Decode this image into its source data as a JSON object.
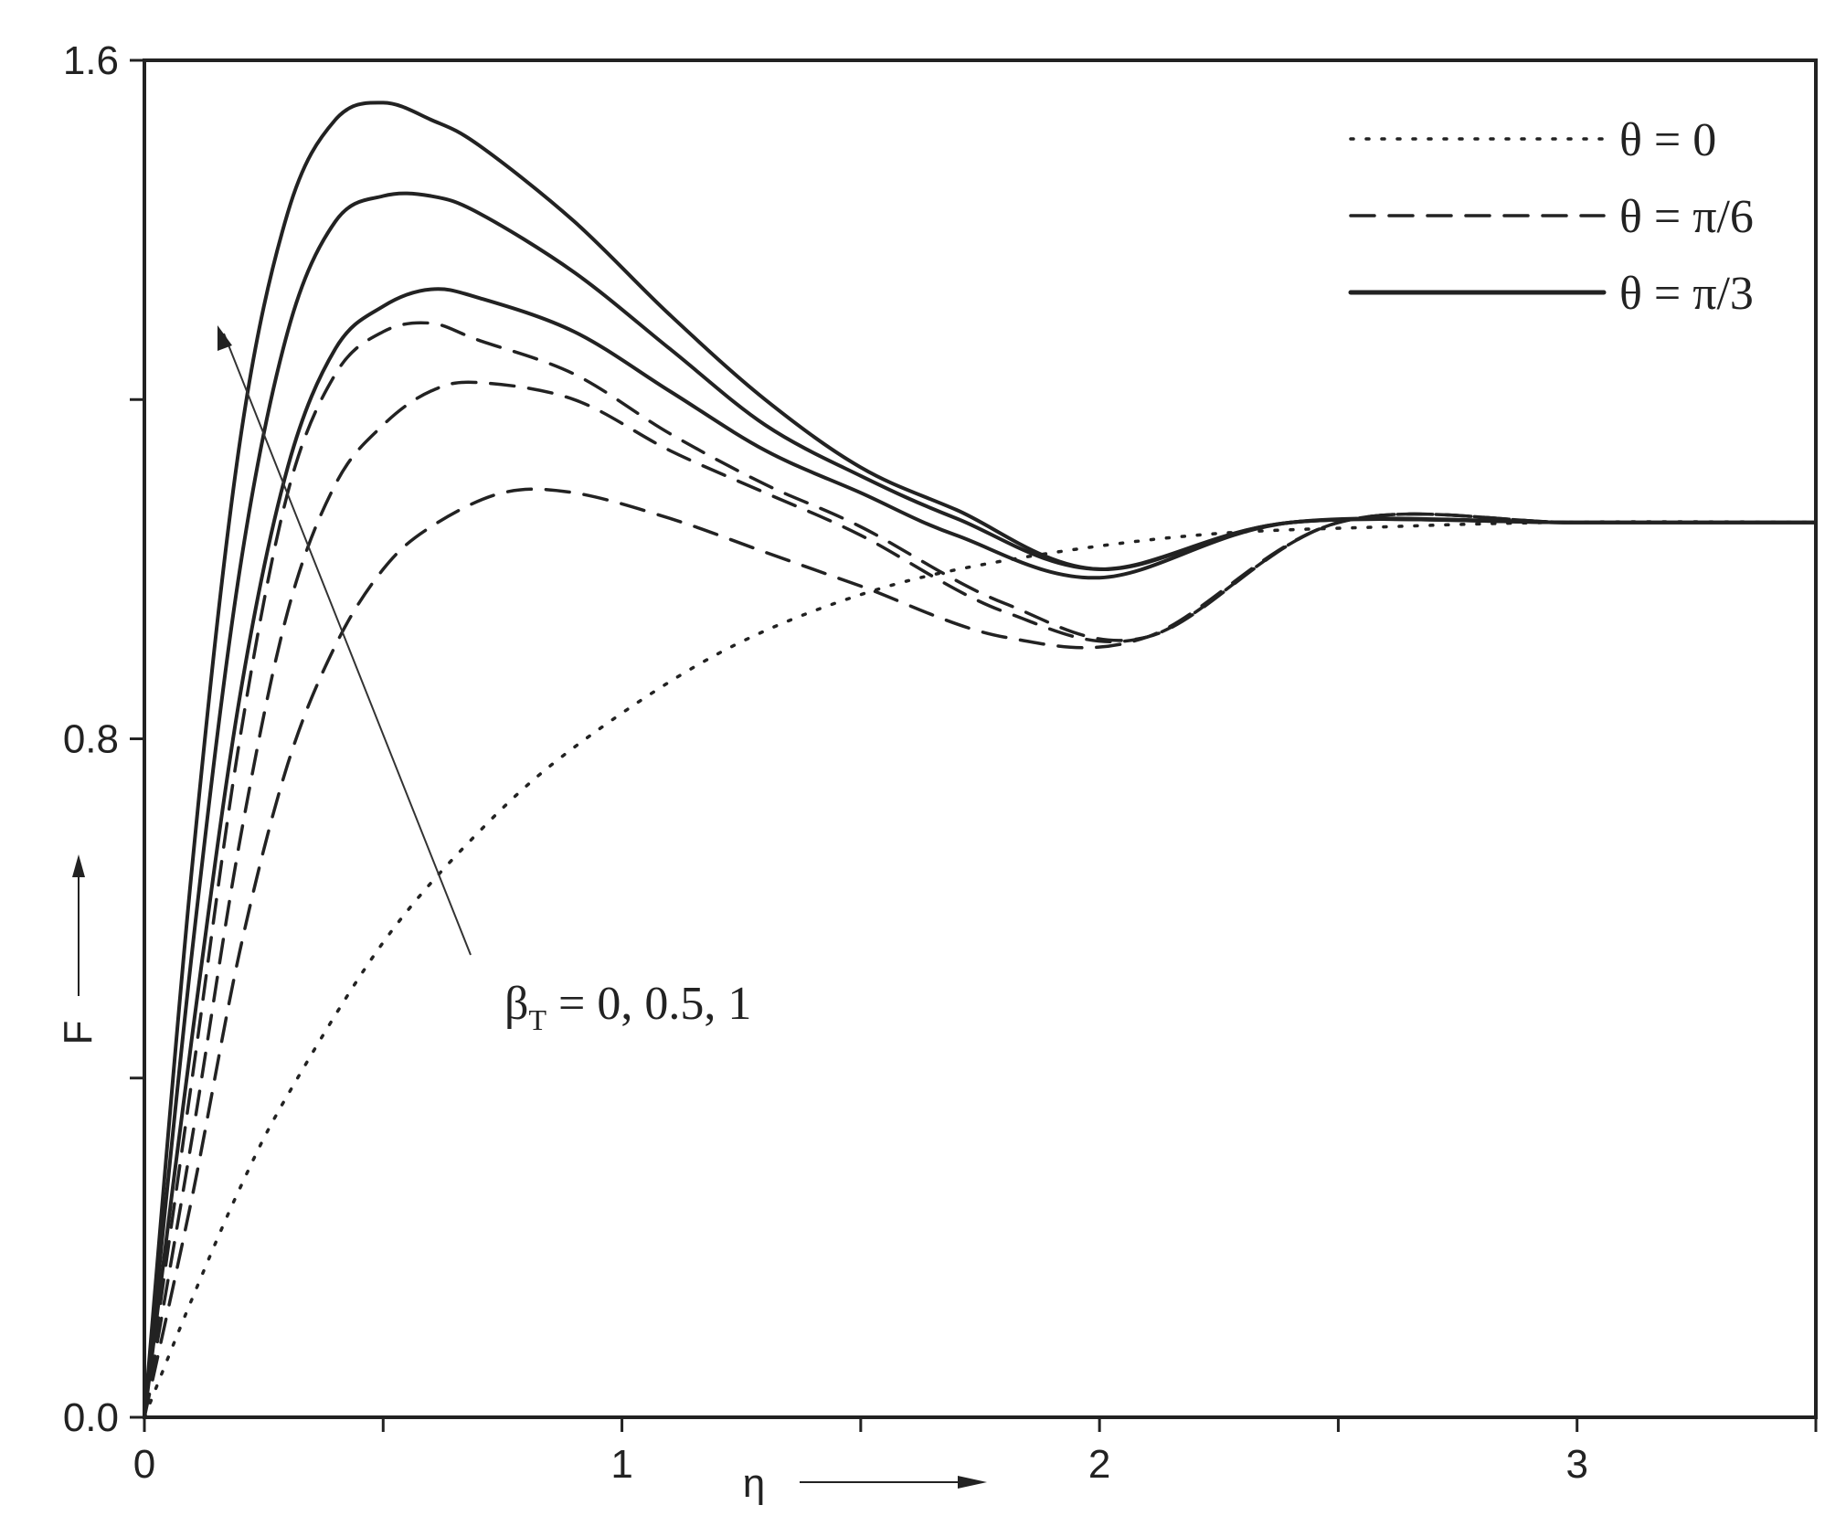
{
  "chart_data": {
    "type": "line",
    "title": "",
    "xlabel": "η",
    "ylabel": "F",
    "xlim": [
      0,
      3.5
    ],
    "ylim": [
      0,
      1.6
    ],
    "x_ticks": [
      0,
      0.5,
      1,
      1.5,
      2,
      2.5,
      3,
      3.5
    ],
    "x_tick_labels": [
      "0",
      "",
      "1",
      "",
      "2",
      "",
      "3",
      ""
    ],
    "y_ticks": [
      0,
      0.4,
      0.8,
      1.2,
      1.6
    ],
    "y_tick_labels": [
      "0.0",
      "",
      "0.8",
      "",
      "1.6"
    ],
    "grid": false,
    "legend_position": "top-right",
    "legend": [
      {
        "label": "θ = 0",
        "style": "dotted"
      },
      {
        "label": "θ = π/6",
        "style": "dashed"
      },
      {
        "label": "θ = π/3",
        "style": "solid"
      }
    ],
    "annotation": {
      "label": "β",
      "subscript": "T",
      "rest": " = 0, 0.5, 1"
    },
    "series": [
      {
        "group": "θ = 0",
        "style": "dotted",
        "beta_T": "0, 0.5, 1",
        "x": [
          0,
          0.1,
          0.2,
          0.3,
          0.5,
          0.7,
          0.9,
          1.2,
          1.5,
          1.8,
          2.2,
          2.6,
          3.0,
          3.5
        ],
        "y": [
          0,
          0.14,
          0.27,
          0.38,
          0.56,
          0.69,
          0.79,
          0.9,
          0.97,
          1.01,
          1.04,
          1.05,
          1.0555,
          1.0555
        ]
      },
      {
        "group": "θ = π/6",
        "style": "dashed",
        "beta_T": "0",
        "x": [
          0,
          0.1,
          0.2,
          0.3,
          0.4,
          0.5,
          0.6,
          0.75,
          0.9,
          1.1,
          1.3,
          1.5,
          1.8,
          2.1,
          2.5,
          3.0,
          3.5
        ],
        "y": [
          0,
          0.26,
          0.55,
          0.77,
          0.91,
          1.0,
          1.05,
          1.09,
          1.09,
          1.06,
          1.02,
          0.98,
          0.92,
          0.92,
          1.055,
          1.055,
          1.055
        ]
      },
      {
        "group": "θ = π/6",
        "style": "dashed",
        "beta_T": "0.5",
        "x": [
          0,
          0.1,
          0.2,
          0.3,
          0.4,
          0.5,
          0.6,
          0.7,
          0.9,
          1.1,
          1.3,
          1.5,
          1.8,
          2.1,
          2.5,
          3.0,
          3.5
        ],
        "y": [
          0,
          0.33,
          0.68,
          0.95,
          1.1,
          1.17,
          1.21,
          1.22,
          1.2,
          1.14,
          1.09,
          1.04,
          0.95,
          0.92,
          1.055,
          1.055,
          1.055
        ]
      },
      {
        "group": "θ = π/6",
        "style": "dashed",
        "beta_T": "1",
        "x": [
          0,
          0.1,
          0.2,
          0.3,
          0.4,
          0.5,
          0.6,
          0.7,
          0.9,
          1.1,
          1.3,
          1.5,
          1.8,
          2.1,
          2.5,
          3.0,
          3.5
        ],
        "y": [
          0,
          0.4,
          0.8,
          1.09,
          1.23,
          1.28,
          1.29,
          1.27,
          1.23,
          1.16,
          1.1,
          1.05,
          0.96,
          0.92,
          1.055,
          1.055,
          1.055
        ]
      },
      {
        "group": "θ = π/3",
        "style": "solid",
        "beta_T": "0",
        "x": [
          0,
          0.1,
          0.2,
          0.3,
          0.4,
          0.5,
          0.6,
          0.7,
          0.9,
          1.1,
          1.3,
          1.5,
          1.7,
          2.0,
          2.4,
          3.0,
          3.5
        ],
        "y": [
          0,
          0.45,
          0.85,
          1.12,
          1.26,
          1.31,
          1.33,
          1.32,
          1.28,
          1.21,
          1.14,
          1.09,
          1.04,
          0.99,
          1.055,
          1.055,
          1.055
        ]
      },
      {
        "group": "θ = π/3",
        "style": "solid",
        "beta_T": "0.5",
        "x": [
          0,
          0.1,
          0.2,
          0.3,
          0.4,
          0.5,
          0.6,
          0.7,
          0.9,
          1.1,
          1.3,
          1.5,
          1.7,
          2.0,
          2.4,
          3.0,
          3.5
        ],
        "y": [
          0,
          0.55,
          1.0,
          1.28,
          1.41,
          1.44,
          1.44,
          1.42,
          1.35,
          1.26,
          1.17,
          1.11,
          1.06,
          1.0,
          1.055,
          1.055,
          1.055
        ]
      },
      {
        "group": "θ = π/3",
        "style": "solid",
        "beta_T": "1",
        "x": [
          0,
          0.1,
          0.2,
          0.3,
          0.4,
          0.5,
          0.6,
          0.7,
          0.9,
          1.1,
          1.3,
          1.5,
          1.7,
          2.0,
          2.4,
          3.0,
          3.5
        ],
        "y": [
          0,
          0.65,
          1.15,
          1.42,
          1.53,
          1.55,
          1.53,
          1.5,
          1.41,
          1.3,
          1.2,
          1.12,
          1.07,
          1.0,
          1.055,
          1.055,
          1.055
        ]
      }
    ]
  }
}
